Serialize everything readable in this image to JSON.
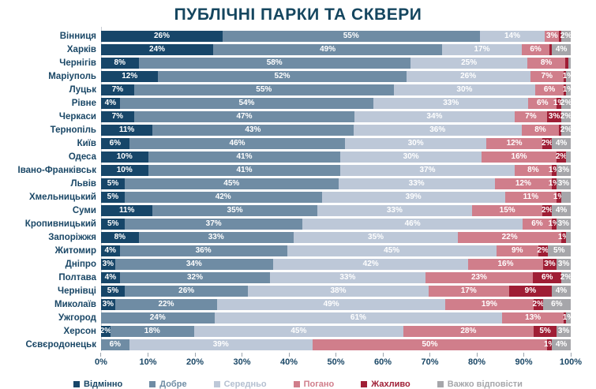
{
  "title": "ПУБЛІЧНІ ПАРКИ ТА СКВЕРИ",
  "chart_data": {
    "type": "bar",
    "orientation": "horizontal-stacked",
    "title": "ПУБЛІЧНІ ПАРКИ ТА СКВЕРИ",
    "unit": "%",
    "xlim": [
      0,
      100
    ],
    "grid": false,
    "legend_position": "bottom",
    "x_ticks": [
      "0%",
      "10%",
      "20%",
      "30%",
      "40%",
      "50%",
      "60%",
      "70%",
      "80%",
      "90%",
      "100%"
    ],
    "legend": [
      {
        "key": "vidminno",
        "label": "Відмінно",
        "color": "#174669"
      },
      {
        "key": "dobre",
        "label": "Добре",
        "color": "#6f8ca4"
      },
      {
        "key": "seredno",
        "label": "Середньо",
        "color": "#bdc8d8"
      },
      {
        "key": "pohano",
        "label": "Погано",
        "color": "#d07e8b"
      },
      {
        "key": "zhakhlyvo",
        "label": "Жахливо",
        "color": "#9f1e35"
      },
      {
        "key": "vazhko",
        "label": "Важко відповісти",
        "color": "#a6a6aa"
      }
    ],
    "rows": [
      {
        "city": "Вінниця",
        "values": [
          26,
          55,
          14,
          3,
          0.5,
          2
        ],
        "labels": [
          "26%",
          "55%",
          "14%",
          "3%",
          "",
          "2%"
        ]
      },
      {
        "city": "Харків",
        "values": [
          24,
          49,
          17,
          6,
          0.5,
          4
        ],
        "labels": [
          "24%",
          "49%",
          "17%",
          "6%",
          "",
          "4%"
        ]
      },
      {
        "city": "Чернігів",
        "values": [
          8,
          58,
          25,
          8,
          0.7,
          0.5
        ],
        "labels": [
          "8%",
          "58%",
          "25%",
          "8%",
          "",
          ""
        ]
      },
      {
        "city": "Маріуполь",
        "values": [
          12,
          52,
          26,
          7,
          0.5,
          1
        ],
        "labels": [
          "12%",
          "52%",
          "26%",
          "7%",
          "",
          "1%"
        ]
      },
      {
        "city": "Луцьк",
        "values": [
          7,
          55,
          30,
          6,
          0.5,
          1
        ],
        "labels": [
          "7%",
          "55%",
          "30%",
          "6%",
          "",
          "1%"
        ]
      },
      {
        "city": "Рівне",
        "values": [
          4,
          54,
          33,
          6,
          1,
          2
        ],
        "labels": [
          "4%",
          "54%",
          "33%",
          "6%",
          "1%",
          "2%"
        ]
      },
      {
        "city": "Черкаси",
        "values": [
          7,
          47,
          34,
          7,
          3,
          2
        ],
        "labels": [
          "7%",
          "47%",
          "34%",
          "7%",
          "3%",
          "2%"
        ]
      },
      {
        "city": "Тернопіль",
        "values": [
          11,
          43,
          36,
          8,
          0.5,
          2
        ],
        "labels": [
          "11%",
          "43%",
          "36%",
          "8%",
          "",
          "2%"
        ]
      },
      {
        "city": "Київ",
        "values": [
          6,
          46,
          30,
          12,
          2,
          4
        ],
        "labels": [
          "6%",
          "46%",
          "30%",
          "12%",
          "2%",
          "4%"
        ]
      },
      {
        "city": "Одеса",
        "values": [
          10,
          41,
          30,
          16,
          2,
          1
        ],
        "labels": [
          "10%",
          "41%",
          "30%",
          "16%",
          "2%",
          ""
        ]
      },
      {
        "city": "Івано-Франківськ",
        "values": [
          10,
          41,
          37,
          8,
          1,
          3
        ],
        "labels": [
          "10%",
          "41%",
          "37%",
          "8%",
          "1%",
          "3%"
        ]
      },
      {
        "city": "Львів",
        "values": [
          5,
          45,
          33,
          12,
          1,
          3
        ],
        "labels": [
          "5%",
          "45%",
          "33%",
          "12%",
          "1%",
          "3%"
        ]
      },
      {
        "city": "Хмельницький",
        "values": [
          5,
          42,
          39,
          11,
          1,
          2
        ],
        "labels": [
          "5%",
          "42%",
          "39%",
          "11%",
          "1%",
          ""
        ]
      },
      {
        "city": "Суми",
        "values": [
          11,
          35,
          33,
          15,
          2,
          4
        ],
        "labels": [
          "11%",
          "35%",
          "33%",
          "15%",
          "2%",
          "4%"
        ]
      },
      {
        "city": "Кропивницький",
        "values": [
          5,
          37,
          46,
          6,
          1,
          3
        ],
        "labels": [
          "5%",
          "37%",
          "46%",
          "6%",
          "1%",
          "3%"
        ]
      },
      {
        "city": "Запоріжжя",
        "values": [
          8,
          33,
          35,
          22,
          1,
          1
        ],
        "labels": [
          "8%",
          "33%",
          "35%",
          "22%",
          "1%",
          ""
        ]
      },
      {
        "city": "Житомир",
        "values": [
          4,
          36,
          45,
          9,
          2,
          5
        ],
        "labels": [
          "4%",
          "36%",
          "45%",
          "9%",
          "2%",
          "5%"
        ]
      },
      {
        "city": "Дніпро",
        "values": [
          3,
          34,
          42,
          16,
          3,
          3
        ],
        "labels": [
          "3%",
          "34%",
          "42%",
          "16%",
          "3%",
          "3%"
        ]
      },
      {
        "city": "Полтава",
        "values": [
          4,
          32,
          33,
          23,
          6,
          2
        ],
        "labels": [
          "4%",
          "32%",
          "33%",
          "23%",
          "6%",
          "2%"
        ]
      },
      {
        "city": "Чернівці",
        "values": [
          5,
          26,
          38,
          17,
          9,
          4
        ],
        "labels": [
          "5%",
          "26%",
          "38%",
          "17%",
          "9%",
          "4%"
        ]
      },
      {
        "city": "Миколаїв",
        "values": [
          3,
          22,
          49,
          19,
          2,
          6
        ],
        "labels": [
          "3%",
          "22%",
          "49%",
          "19%",
          "2%",
          "6%"
        ]
      },
      {
        "city": "Ужгород",
        "values": [
          0,
          24,
          61,
          13,
          0.5,
          1
        ],
        "labels": [
          "",
          "24%",
          "61%",
          "13%",
          "",
          "1%"
        ]
      },
      {
        "city": "Херсон",
        "values": [
          2,
          18,
          45,
          28,
          5,
          3
        ],
        "labels": [
          "2%",
          "18%",
          "45%",
          "28%",
          "5%",
          "3%"
        ]
      },
      {
        "city": "Сєвєродонецьк",
        "values": [
          0,
          6,
          39,
          50,
          1,
          4
        ],
        "labels": [
          "",
          "6%",
          "39%",
          "50%",
          "1%",
          "4%"
        ]
      }
    ]
  }
}
